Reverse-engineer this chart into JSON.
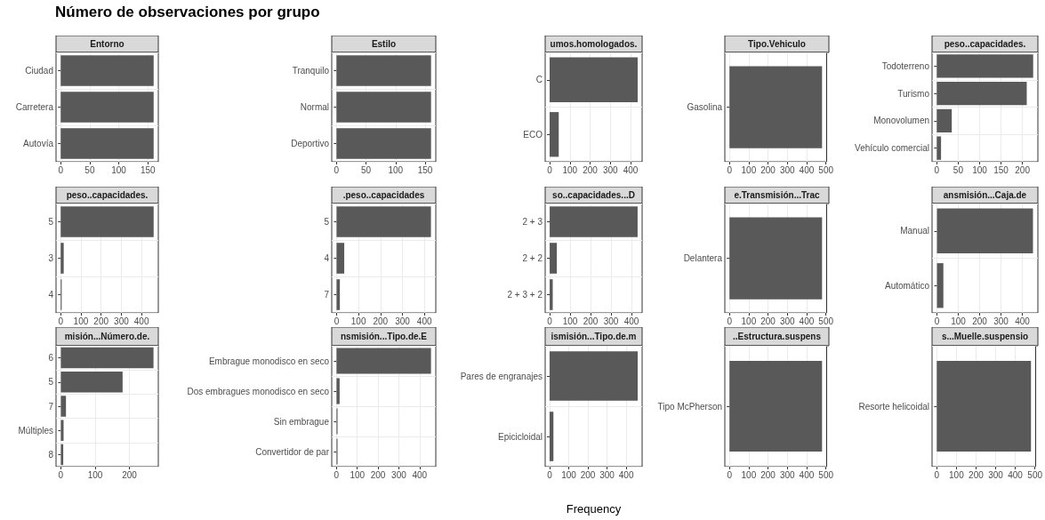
{
  "chart_data": [
    {
      "type": "bar",
      "orientation": "horizontal",
      "title": "Número de observaciones por grupo",
      "subtitle": "Entorno",
      "categories": [
        "Ciudad",
        "Carretera",
        "Autovía"
      ],
      "values": [
        160,
        160,
        160
      ],
      "color": "#595959",
      "xlim": [
        -8,
        168
      ],
      "xticks": [
        0,
        50,
        100,
        150
      ],
      "grid": true
    },
    {
      "type": "bar",
      "orientation": "horizontal",
      "subtitle": "Estilo",
      "categories": [
        "Tranquilo",
        "Normal",
        "Deportivo"
      ],
      "values": [
        160,
        160,
        160
      ],
      "color": "#595959",
      "xlim": [
        -8,
        168
      ],
      "xticks": [
        0,
        50,
        100,
        150
      ],
      "grid": true
    },
    {
      "type": "bar",
      "orientation": "horizontal",
      "subtitle": "umos.homologados.",
      "categories": [
        "C",
        "ECO"
      ],
      "values": [
        435,
        45
      ],
      "color": "#595959",
      "xlim": [
        -22,
        457
      ],
      "xticks": [
        0,
        100,
        200,
        300,
        400
      ],
      "grid": true
    },
    {
      "type": "bar",
      "orientation": "horizontal",
      "subtitle": "Tipo.Vehiculo",
      "categories": [
        "Gasolina"
      ],
      "values": [
        480
      ],
      "color": "#595959",
      "xlim": [
        -24,
        504
      ],
      "xticks": [
        0,
        100,
        200,
        300,
        400,
        500
      ],
      "grid": true
    },
    {
      "type": "bar",
      "orientation": "horizontal",
      "subtitle": "peso..capacidades.",
      "categories": [
        "Todoterreno",
        "Turismo",
        "Monovolumen",
        "Vehículo comercial"
      ],
      "values": [
        225,
        210,
        35,
        10
      ],
      "color": "#595959",
      "xlim": [
        -11,
        236
      ],
      "xticks": [
        0,
        50,
        100,
        150,
        200
      ],
      "grid": true
    },
    {
      "type": "bar",
      "orientation": "horizontal",
      "subtitle": "peso..capacidades.",
      "categories": [
        "5",
        "3",
        "4"
      ],
      "values": [
        460,
        15,
        5
      ],
      "color": "#595959",
      "xlim": [
        -23,
        483
      ],
      "xticks": [
        0,
        100,
        200,
        300,
        400
      ],
      "grid": true
    },
    {
      "type": "bar",
      "orientation": "horizontal",
      "subtitle": ".peso..capacidades",
      "categories": [
        "5",
        "4",
        "7"
      ],
      "values": [
        430,
        35,
        15
      ],
      "color": "#595959",
      "xlim": [
        -22,
        452
      ],
      "xticks": [
        0,
        100,
        200,
        300,
        400
      ],
      "grid": true
    },
    {
      "type": "bar",
      "orientation": "horizontal",
      "subtitle": "so..capacidades...D",
      "categories": [
        "2 + 3",
        "2 + 2",
        "2 + 3 + 2"
      ],
      "values": [
        430,
        35,
        15
      ],
      "color": "#595959",
      "xlim": [
        -22,
        452
      ],
      "xticks": [
        0,
        100,
        200,
        300,
        400
      ],
      "grid": true
    },
    {
      "type": "bar",
      "orientation": "horizontal",
      "subtitle": "e.Transmisión...Trac",
      "categories": [
        "Delantera"
      ],
      "values": [
        480
      ],
      "color": "#595959",
      "xlim": [
        -24,
        504
      ],
      "xticks": [
        0,
        100,
        200,
        300,
        400,
        500
      ],
      "grid": true
    },
    {
      "type": "bar",
      "orientation": "horizontal",
      "subtitle": "ansmisión...Caja.de",
      "categories": [
        "Manual",
        "Automático"
      ],
      "values": [
        450,
        30
      ],
      "color": "#595959",
      "xlim": [
        -23,
        473
      ],
      "xticks": [
        0,
        100,
        200,
        300,
        400
      ],
      "grid": true
    },
    {
      "type": "bar",
      "orientation": "horizontal",
      "subtitle": "misión...Número.de.",
      "categories": [
        "6",
        "5",
        "7",
        "Múltiples",
        "8"
      ],
      "values": [
        270,
        180,
        15,
        8,
        7
      ],
      "color": "#595959",
      "xlim": [
        -14,
        284
      ],
      "xticks": [
        0,
        100,
        200
      ],
      "grid": true
    },
    {
      "type": "bar",
      "orientation": "horizontal",
      "subtitle": "nsmisión...Tipo.de.E",
      "categories": [
        "Embrague monodisco en seco",
        "Dos embragues monodisco en seco",
        "Sin embrague",
        "Convertidor de par"
      ],
      "values": [
        455,
        15,
        5,
        5
      ],
      "color": "#595959",
      "xlim": [
        -23,
        478
      ],
      "xticks": [
        0,
        100,
        200,
        300,
        400
      ],
      "grid": true
    },
    {
      "type": "bar",
      "orientation": "horizontal",
      "subtitle": "ismisión...Tipo.de.m",
      "xlabel": "Frequency",
      "categories": [
        "Pares de engranajes",
        "Epicicloidal"
      ],
      "values": [
        460,
        20
      ],
      "color": "#595959",
      "xlim": [
        -23,
        483
      ],
      "xticks": [
        0,
        100,
        200,
        300,
        400
      ],
      "grid": true
    },
    {
      "type": "bar",
      "orientation": "horizontal",
      "subtitle": "..Estructura.suspens",
      "categories": [
        "Tipo McPherson"
      ],
      "values": [
        480
      ],
      "color": "#595959",
      "xlim": [
        -24,
        504
      ],
      "xticks": [
        0,
        100,
        200,
        300,
        400,
        500
      ],
      "grid": true
    },
    {
      "type": "bar",
      "orientation": "horizontal",
      "subtitle": "s...Muelle.suspensio",
      "categories": [
        "Resorte helicoidal"
      ],
      "values": [
        480
      ],
      "color": "#595959",
      "xlim": [
        -24,
        504
      ],
      "xticks": [
        0,
        100,
        200,
        300,
        400,
        500
      ],
      "grid": true
    }
  ]
}
